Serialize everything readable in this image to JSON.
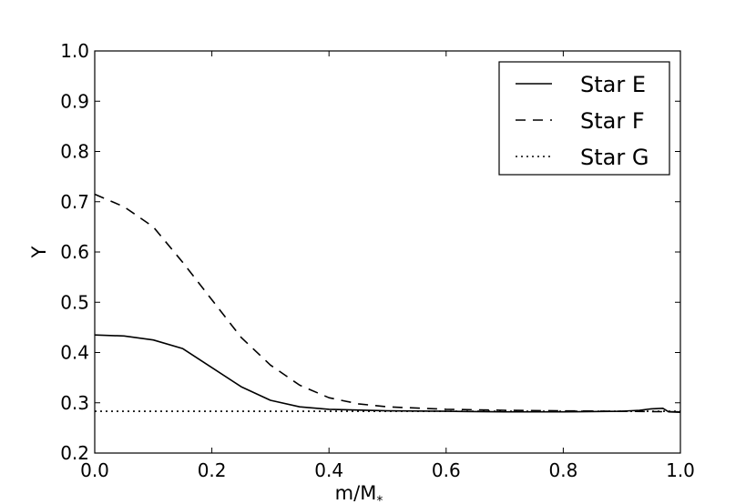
{
  "chart_data": {
    "type": "line",
    "title": "",
    "xlabel": "m/M",
    "xlabel_subscript": "*",
    "ylabel": "Y",
    "xlim": [
      0.0,
      1.0
    ],
    "ylim": [
      0.2,
      1.0
    ],
    "xticks": [
      "0.0",
      "0.2",
      "0.4",
      "0.6",
      "0.8",
      "1.0"
    ],
    "yticks": [
      "0.2",
      "0.3",
      "0.4",
      "0.5",
      "0.6",
      "0.7",
      "0.8",
      "0.9",
      "1.0"
    ],
    "grid": false,
    "legend_position": "top-right",
    "series": [
      {
        "name": "Star E",
        "style": "solid",
        "x": [
          0.0,
          0.05,
          0.1,
          0.15,
          0.2,
          0.25,
          0.3,
          0.35,
          0.4,
          0.5,
          0.6,
          0.7,
          0.8,
          0.9,
          0.93,
          0.95,
          0.97,
          0.98,
          1.0
        ],
        "y": [
          0.435,
          0.433,
          0.425,
          0.408,
          0.37,
          0.332,
          0.305,
          0.292,
          0.287,
          0.284,
          0.283,
          0.282,
          0.282,
          0.283,
          0.285,
          0.288,
          0.289,
          0.282,
          0.281
        ]
      },
      {
        "name": "Star F",
        "style": "dashed",
        "x": [
          0.0,
          0.05,
          0.1,
          0.15,
          0.2,
          0.25,
          0.3,
          0.35,
          0.4,
          0.45,
          0.5,
          0.6,
          0.7,
          0.8,
          0.9,
          1.0
        ],
        "y": [
          0.715,
          0.69,
          0.65,
          0.58,
          0.505,
          0.43,
          0.375,
          0.335,
          0.31,
          0.298,
          0.292,
          0.287,
          0.285,
          0.284,
          0.283,
          0.282
        ]
      },
      {
        "name": "Star G",
        "style": "dotted",
        "x": [
          0.0,
          0.2,
          0.4,
          0.6,
          0.8,
          1.0
        ],
        "y": [
          0.283,
          0.283,
          0.283,
          0.283,
          0.283,
          0.283
        ]
      }
    ]
  }
}
